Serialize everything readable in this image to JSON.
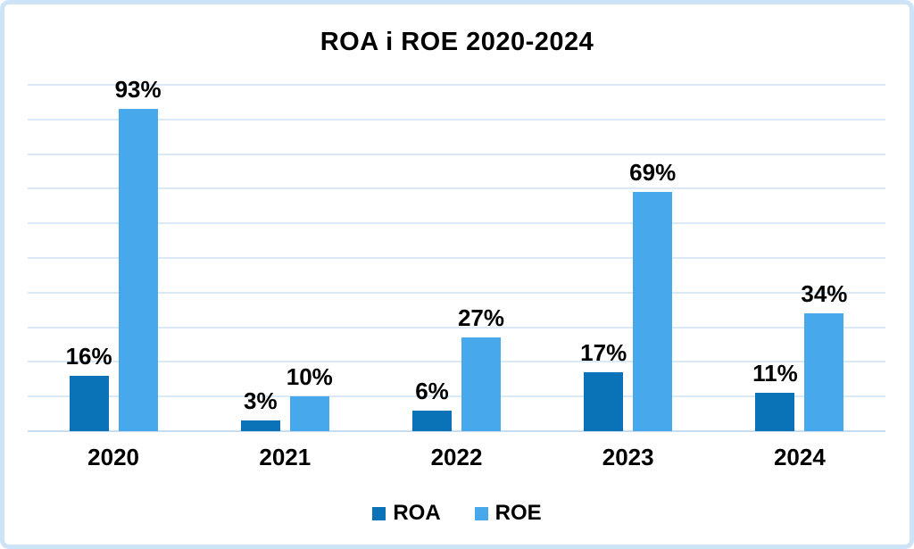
{
  "title": "ROA i ROE 2020-2024",
  "chart_data": {
    "type": "bar",
    "categories": [
      "2020",
      "2021",
      "2022",
      "2023",
      "2024"
    ],
    "series": [
      {
        "name": "ROA",
        "color": "#0a72b6",
        "values": [
          16,
          3,
          6,
          17,
          11
        ]
      },
      {
        "name": "ROE",
        "color": "#47a8ec",
        "values": [
          93,
          10,
          27,
          69,
          34
        ]
      }
    ],
    "value_suffix": "%",
    "data_labels": [
      "16%",
      "3%",
      "6%",
      "17%",
      "11%",
      "93%",
      "10%",
      "27%",
      "69%",
      "34%"
    ],
    "ylim": [
      0,
      100
    ],
    "gridline_step": 10,
    "grid": true,
    "y_tick_labels_visible": false,
    "legend_position": "bottom"
  },
  "legend": {
    "items": [
      {
        "label": "ROA",
        "color": "#0a72b6"
      },
      {
        "label": "ROE",
        "color": "#47a8ec"
      }
    ]
  },
  "colors": {
    "background": "#ffffff",
    "frame_border": "#cde4f8",
    "gridline": "#dbe8f6",
    "axis_line": "#c6dcf1",
    "text": "#000000"
  }
}
